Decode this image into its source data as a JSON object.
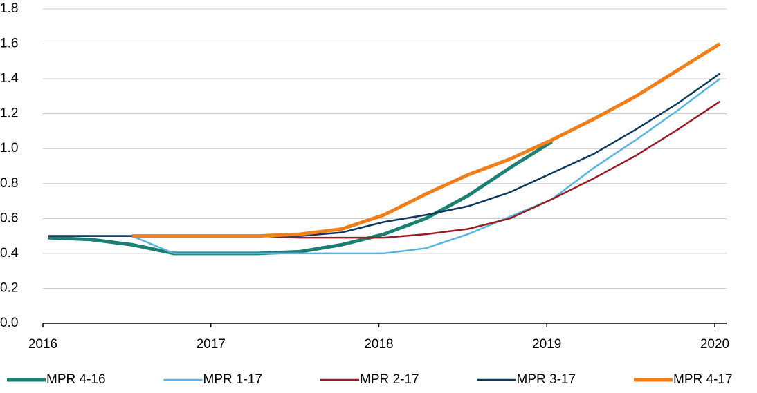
{
  "chart_data": {
    "type": "line",
    "x": [
      2016.03,
      2016.28,
      2016.53,
      2016.78,
      2017.03,
      2017.28,
      2017.53,
      2017.78,
      2018.03,
      2018.28,
      2018.53,
      2018.78,
      2019.03,
      2019.28,
      2019.53,
      2019.78,
      2020.03
    ],
    "series": [
      {
        "name": "MPR 4-16",
        "color": "#1b7f72",
        "width": 5,
        "values": [
          0.49,
          0.48,
          0.45,
          0.4,
          0.4,
          0.4,
          0.41,
          0.45,
          0.51,
          0.6,
          0.73,
          0.89,
          1.04,
          null,
          null,
          null,
          null
        ]
      },
      {
        "name": "MPR 1-17",
        "color": "#56b4e3",
        "width": 2.5,
        "values": [
          0.5,
          0.5,
          0.5,
          0.4,
          0.4,
          0.4,
          0.4,
          0.4,
          0.4,
          0.43,
          0.51,
          0.61,
          0.71,
          0.89,
          1.05,
          1.22,
          1.4
        ]
      },
      {
        "name": "MPR 2-17",
        "color": "#9b1b22",
        "width": 2.5,
        "values": [
          0.5,
          0.5,
          0.5,
          0.5,
          0.5,
          0.5,
          0.49,
          0.49,
          0.49,
          0.51,
          0.54,
          0.6,
          0.71,
          0.83,
          0.96,
          1.11,
          1.27
        ]
      },
      {
        "name": "MPR 3-17",
        "color": "#0d3a5c",
        "width": 2.5,
        "values": [
          0.5,
          0.5,
          0.5,
          0.5,
          0.5,
          0.5,
          0.5,
          0.52,
          0.58,
          0.62,
          0.67,
          0.75,
          0.86,
          0.97,
          1.11,
          1.26,
          1.43
        ]
      },
      {
        "name": "MPR 4-17",
        "color": "#f07f1a",
        "width": 5,
        "values": [
          null,
          null,
          0.5,
          0.5,
          0.5,
          0.5,
          0.51,
          0.54,
          0.62,
          0.74,
          0.85,
          0.94,
          1.05,
          1.17,
          1.3,
          1.45,
          1.6
        ]
      }
    ],
    "xlim": [
      2016,
      2020.07
    ],
    "xticks": [
      2016,
      2017,
      2018,
      2019,
      2020
    ],
    "ylim": [
      0,
      1.8
    ],
    "yticks": [
      {
        "value": 0,
        "label": "0.0"
      },
      0.2,
      0.4,
      0.6,
      0.8,
      {
        "value": 1,
        "label": "1.0"
      },
      1.2,
      1.4,
      1.6,
      1.8
    ],
    "grid": true,
    "legend": "bottom"
  }
}
